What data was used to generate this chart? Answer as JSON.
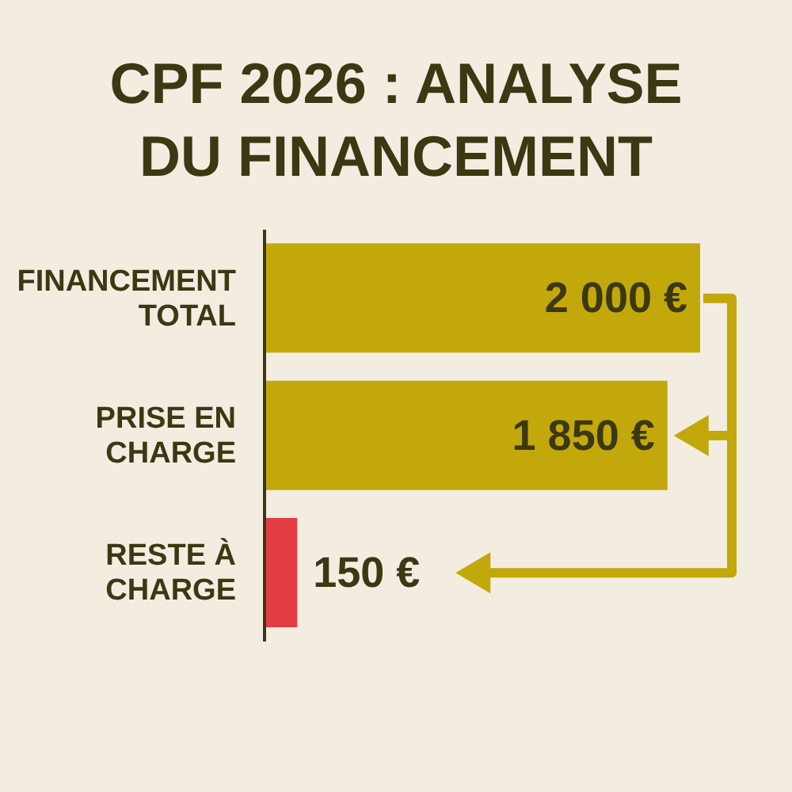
{
  "chart_data": {
    "type": "bar",
    "orientation": "horizontal",
    "title": "CPF 2026 : ANALYSE DU FINANCEMENT",
    "categories": [
      "FINANCEMENT TOTAL",
      "PRISE EN CHARGE",
      "RESTE À CHARGE"
    ],
    "values": [
      2000,
      1850,
      150
    ],
    "colors": [
      "#c2a80a",
      "#c2a80a",
      "#e43c45"
    ],
    "value_labels": [
      "2 000 €",
      "1 850 €",
      "150 €"
    ]
  }
}
